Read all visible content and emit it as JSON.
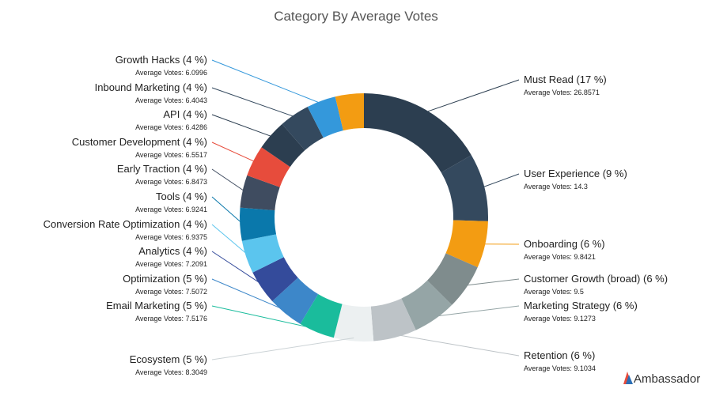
{
  "chart_data": {
    "type": "donut",
    "title": "Category By Average Votes",
    "categories": [
      "Must Read (17 %)",
      "User Experience (9 %)",
      "Onboarding (6 %)",
      "Customer Growth (broad) (6 %)",
      "Marketing Strategy (6 %)",
      "Retention (6 %)",
      "Ecosystem (5 %)",
      "Email Marketing (5 %)",
      "Optimization (5 %)",
      "Analytics (4 %)",
      "Conversion Rate Optimization (4 %)",
      "Tools (4 %)",
      "Early Traction (4 %)",
      "Customer Development (4 %)",
      "API (4 %)",
      "Inbound Marketing (4 %)",
      "Growth Hacks (4 %)",
      null
    ],
    "values": [
      26.8571,
      14.3,
      9.8421,
      9.5,
      9.1273,
      9.1034,
      8.3049,
      7.5176,
      7.5072,
      7.2091,
      6.9375,
      6.9241,
      6.8473,
      6.5517,
      6.4286,
      6.4043,
      6.0996,
      6
    ],
    "value_labels": [
      "Average Votes: 26.8571",
      "Average Votes: 14.3",
      "Average Votes: 9.8421",
      "Average Votes: 9.5",
      "Average Votes: 9.1273",
      "Average Votes: 9.1034",
      "Average Votes: 8.3049",
      "Average Votes: 7.5176",
      "Average Votes: 7.5072",
      "Average Votes: 7.2091",
      "Average Votes: 6.9375",
      "Average Votes: 6.9241",
      "Average Votes: 6.8473",
      "Average Votes: 6.5517",
      "Average Votes: 6.4286",
      "Average Votes: 6.4043",
      "Average Votes: 6.0996",
      null
    ],
    "colors": [
      "#2c3e50",
      "#34495e",
      "#f39c12",
      "#7f8c8d",
      "#95a5a6",
      "#bdc3c7",
      "#ecf0f1",
      "#1abc9c",
      "#3d87c9",
      "#344b9b",
      "#5bc5ee",
      "#0a78ab",
      "#3f4c60",
      "#e74c3c",
      "#2c3e50",
      "#34495e",
      "#3498db",
      "#f39c12"
    ]
  },
  "logo": "Ambassador"
}
